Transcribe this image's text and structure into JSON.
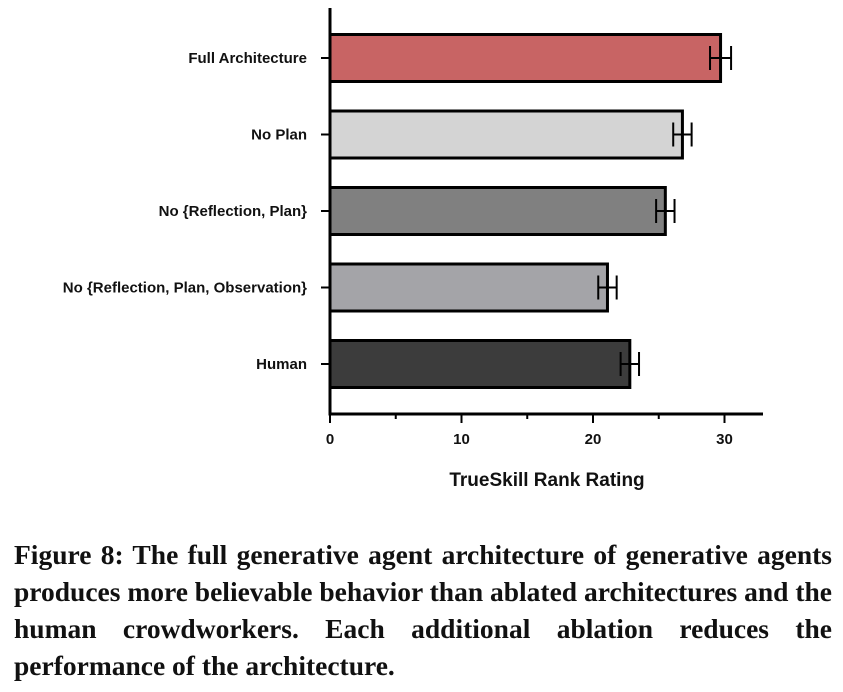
{
  "chart_data": {
    "type": "bar",
    "orientation": "horizontal",
    "categories": [
      "Full Architecture",
      "No Plan",
      "No {Reflection, Plan}",
      "No {Reflection, Plan, Observation}",
      "Human"
    ],
    "values": [
      29.7,
      26.8,
      25.5,
      21.1,
      22.8
    ],
    "error": [
      0.8,
      0.7,
      0.7,
      0.7,
      0.7
    ],
    "colors": [
      "#c86464",
      "#d4d4d4",
      "#808080",
      "#a4a4a8",
      "#3c3c3c"
    ],
    "xlabel": "TrueSkill Rank Rating",
    "xlim": [
      0,
      33
    ],
    "xticks": [
      0,
      10,
      20,
      30
    ],
    "grid": false
  },
  "caption": "Figure 8: The full generative agent architecture of generative agents produces more believable behavior than ablated architectures and the human crowdworkers. Each additional ablation reduces the performance of the architecture."
}
